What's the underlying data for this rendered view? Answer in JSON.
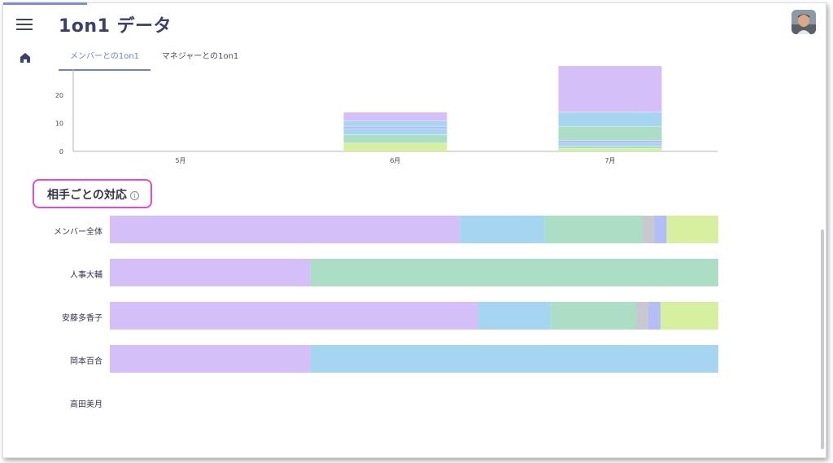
{
  "header": {
    "title": "1on1 データ"
  },
  "tabs": [
    {
      "label": "メンバーとの1on1",
      "active": true
    },
    {
      "label": "マネジャーとの1on1",
      "active": false
    }
  ],
  "section": {
    "title": "相手ごとの対応",
    "info_icon": "info-icon"
  },
  "colors": {
    "purple": "#d4bff8",
    "blue": "#a6d5f2",
    "green": "#acdec6",
    "gray": "#c8c8d0",
    "periwinkle": "#b3bdf7",
    "lime": "#d6f0a0",
    "accent": "#6d7fd9",
    "highlight_border": "#e54bd0"
  },
  "chart_data": [
    {
      "type": "bar",
      "stacked": true,
      "categories": [
        "5月",
        "6月",
        "7月"
      ],
      "y_ticks": [
        0,
        10,
        20
      ],
      "ylim": [
        0,
        30
      ],
      "series": [
        {
          "color": "#d6f0a0",
          "values": [
            0,
            3,
            1
          ]
        },
        {
          "color": "#acdec6",
          "values": [
            0,
            3,
            1
          ]
        },
        {
          "color": "#a6d5f2",
          "values": [
            0,
            2,
            1
          ]
        },
        {
          "color": "#b3bdf7",
          "values": [
            0,
            1,
            1
          ]
        },
        {
          "color": "#acdec6",
          "values": [
            0,
            0,
            5
          ]
        },
        {
          "color": "#a6d5f2",
          "values": [
            0,
            2,
            5
          ]
        },
        {
          "color": "#d4bff8",
          "values": [
            0,
            3,
            16.5
          ]
        }
      ]
    },
    {
      "type": "bar",
      "orientation": "horizontal",
      "stacked_percent": true,
      "categories": [
        "メンバー全体",
        "人事大輔",
        "安藤多香子",
        "岡本百合",
        "高田美月"
      ],
      "series": [
        {
          "color": "#d4bff8",
          "values": [
            57.5,
            33,
            60.5,
            33,
            0
          ]
        },
        {
          "color": "#a6d5f2",
          "values": [
            14,
            0,
            12,
            67,
            0
          ]
        },
        {
          "color": "#acdec6",
          "values": [
            16,
            67,
            14,
            0,
            0
          ]
        },
        {
          "color": "#c8c8d0",
          "values": [
            2,
            0,
            2,
            0,
            0
          ]
        },
        {
          "color": "#b3bdf7",
          "values": [
            2,
            0,
            2,
            0,
            0
          ]
        },
        {
          "color": "#d6f0a0",
          "values": [
            8.5,
            0,
            9.5,
            0,
            0
          ]
        }
      ]
    }
  ]
}
